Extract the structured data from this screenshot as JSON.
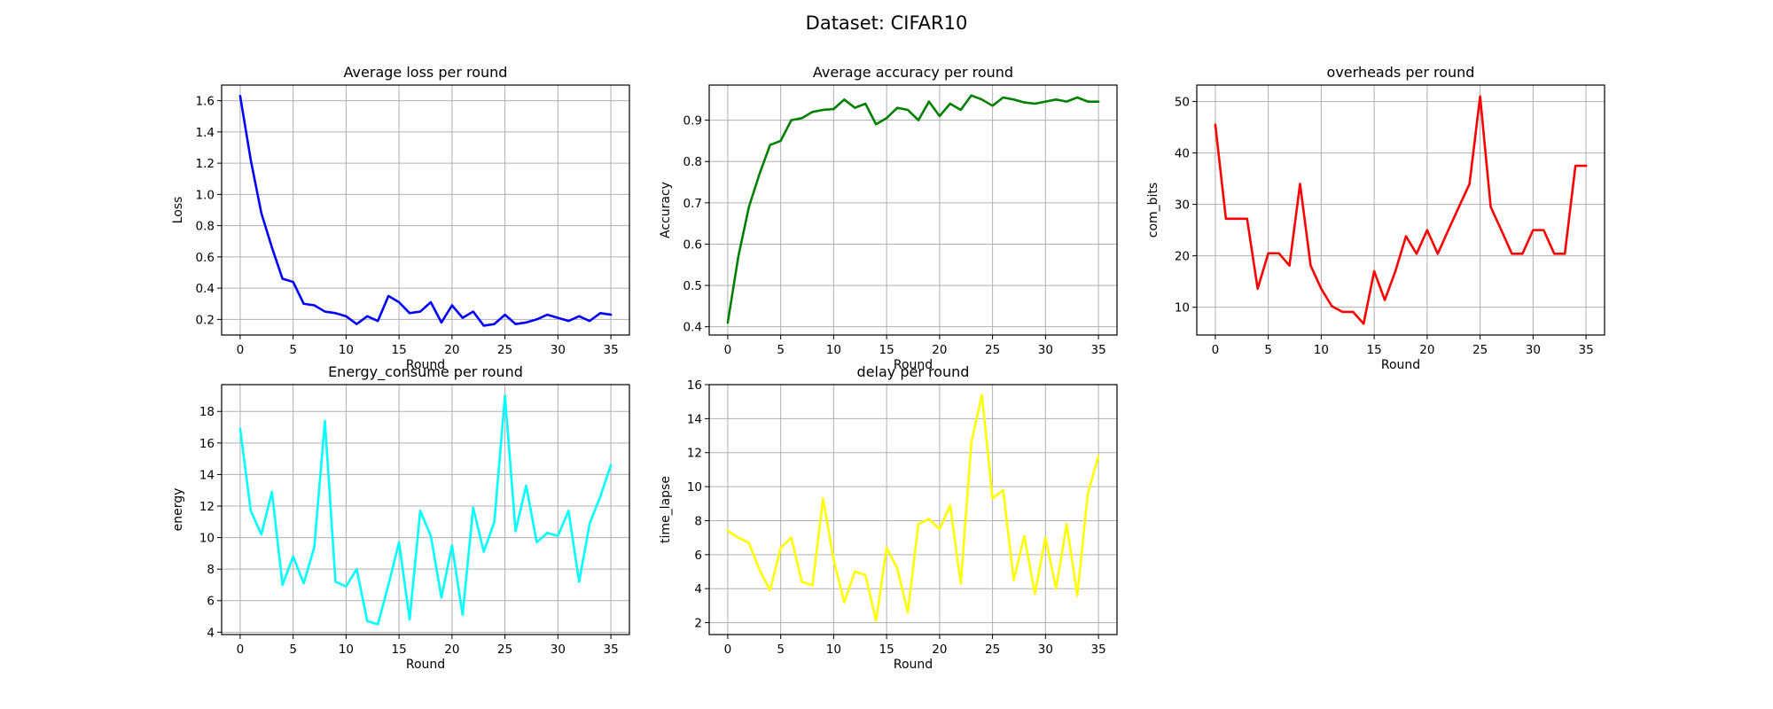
{
  "suptitle": "Dataset: CIFAR10",
  "chart_data": [
    {
      "type": "line",
      "title": "Average loss per round",
      "xlabel": "Round",
      "ylabel": "Loss",
      "color": "#0000ff",
      "grid": true,
      "xlim": [
        -1.75,
        36.75
      ],
      "ylim": [
        0.1,
        1.7
      ],
      "xticks": [
        0,
        5,
        10,
        15,
        20,
        25,
        30,
        35
      ],
      "yticks": [
        0.2,
        0.4,
        0.6,
        0.8,
        1.0,
        1.2,
        1.4,
        1.6
      ],
      "ytick_labels": [
        "0.2",
        "0.4",
        "0.6",
        "0.8",
        "1.0",
        "1.2",
        "1.4",
        "1.6"
      ],
      "x": [
        0,
        1,
        2,
        3,
        4,
        5,
        6,
        7,
        8,
        9,
        10,
        11,
        12,
        13,
        14,
        15,
        16,
        17,
        18,
        19,
        20,
        21,
        22,
        23,
        24,
        25,
        26,
        27,
        28,
        29,
        30,
        31,
        32,
        33,
        34,
        35
      ],
      "values": [
        1.63,
        1.22,
        0.88,
        0.66,
        0.46,
        0.44,
        0.3,
        0.29,
        0.25,
        0.24,
        0.22,
        0.17,
        0.22,
        0.19,
        0.35,
        0.31,
        0.24,
        0.25,
        0.31,
        0.18,
        0.29,
        0.21,
        0.25,
        0.16,
        0.17,
        0.23,
        0.17,
        0.18,
        0.2,
        0.23,
        0.21,
        0.19,
        0.22,
        0.19,
        0.24,
        0.23
      ]
    },
    {
      "type": "line",
      "title": "Average accuracy per round",
      "xlabel": "Round",
      "ylabel": "Accuracy",
      "color": "#008000",
      "grid": true,
      "xlim": [
        -1.75,
        36.75
      ],
      "ylim": [
        0.38,
        0.985
      ],
      "xticks": [
        0,
        5,
        10,
        15,
        20,
        25,
        30,
        35
      ],
      "yticks": [
        0.4,
        0.5,
        0.6,
        0.7,
        0.8,
        0.9
      ],
      "ytick_labels": [
        "0.4",
        "0.5",
        "0.6",
        "0.7",
        "0.8",
        "0.9"
      ],
      "x": [
        0,
        1,
        2,
        3,
        4,
        5,
        6,
        7,
        8,
        9,
        10,
        11,
        12,
        13,
        14,
        15,
        16,
        17,
        18,
        19,
        20,
        21,
        22,
        23,
        24,
        25,
        26,
        27,
        28,
        29,
        30,
        31,
        32,
        33,
        34,
        35
      ],
      "values": [
        0.41,
        0.57,
        0.69,
        0.77,
        0.84,
        0.85,
        0.9,
        0.905,
        0.92,
        0.925,
        0.927,
        0.95,
        0.93,
        0.94,
        0.89,
        0.905,
        0.93,
        0.925,
        0.9,
        0.945,
        0.91,
        0.94,
        0.925,
        0.96,
        0.95,
        0.935,
        0.955,
        0.95,
        0.943,
        0.94,
        0.945,
        0.95,
        0.945,
        0.955,
        0.945,
        0.945
      ]
    },
    {
      "type": "line",
      "title": "overheads per round",
      "xlabel": "Round",
      "ylabel": "com_bits",
      "color": "#ff0000",
      "grid": true,
      "xlim": [
        -1.75,
        36.75
      ],
      "ylim": [
        4.6,
        53.2
      ],
      "xticks": [
        0,
        5,
        10,
        15,
        20,
        25,
        30,
        35
      ],
      "yticks": [
        10,
        20,
        30,
        40,
        50
      ],
      "ytick_labels": [
        "10",
        "20",
        "30",
        "40",
        "50"
      ],
      "x": [
        0,
        1,
        2,
        3,
        4,
        5,
        6,
        7,
        8,
        9,
        10,
        11,
        12,
        13,
        14,
        15,
        16,
        17,
        18,
        19,
        20,
        21,
        22,
        23,
        24,
        25,
        26,
        27,
        28,
        29,
        30,
        31,
        32,
        33,
        34,
        35
      ],
      "values": [
        45.5,
        27.2,
        27.2,
        27.2,
        13.6,
        20.5,
        20.5,
        18.1,
        34.0,
        18.1,
        13.6,
        10.2,
        9.1,
        9.1,
        6.8,
        17.0,
        11.4,
        17.0,
        23.8,
        20.4,
        25.0,
        20.4,
        25.0,
        29.5,
        34.0,
        51.0,
        29.5,
        25.0,
        20.4,
        20.4,
        25.0,
        25.0,
        20.4,
        20.4,
        37.5,
        37.5
      ]
    },
    {
      "type": "line",
      "title": "Energy_consume per round",
      "xlabel": "Round",
      "ylabel": "energy",
      "color": "#00ffff",
      "grid": true,
      "xlim": [
        -1.75,
        36.75
      ],
      "ylim": [
        3.85,
        19.7
      ],
      "xticks": [
        0,
        5,
        10,
        15,
        20,
        25,
        30,
        35
      ],
      "yticks": [
        4,
        6,
        8,
        10,
        12,
        14,
        16,
        18
      ],
      "ytick_labels": [
        "4",
        "6",
        "8",
        "10",
        "12",
        "14",
        "16",
        "18"
      ],
      "x": [
        0,
        1,
        2,
        3,
        4,
        5,
        6,
        7,
        8,
        9,
        10,
        11,
        12,
        13,
        14,
        15,
        16,
        17,
        18,
        19,
        20,
        21,
        22,
        23,
        24,
        25,
        26,
        27,
        28,
        29,
        30,
        31,
        32,
        33,
        34,
        35
      ],
      "values": [
        16.9,
        11.7,
        10.2,
        12.9,
        7.0,
        8.8,
        7.1,
        9.4,
        17.4,
        7.2,
        6.9,
        8.0,
        4.7,
        4.5,
        7.0,
        9.7,
        4.8,
        11.7,
        10.1,
        6.2,
        9.5,
        5.1,
        11.9,
        9.1,
        11.0,
        19.0,
        10.4,
        13.3,
        9.7,
        10.3,
        10.1,
        11.7,
        7.2,
        10.9,
        12.6,
        14.6
      ]
    },
    {
      "type": "line",
      "title": "delay per round",
      "xlabel": "Round",
      "ylabel": "time_lapse",
      "color": "#ffff00",
      "grid": true,
      "xlim": [
        -1.75,
        36.75
      ],
      "ylim": [
        1.3,
        16.0
      ],
      "xticks": [
        0,
        5,
        10,
        15,
        20,
        25,
        30,
        35
      ],
      "yticks": [
        2,
        4,
        6,
        8,
        10,
        12,
        14,
        16
      ],
      "ytick_labels": [
        "2",
        "4",
        "6",
        "8",
        "10",
        "12",
        "14",
        "16"
      ],
      "x": [
        0,
        1,
        2,
        3,
        4,
        5,
        6,
        7,
        8,
        9,
        10,
        11,
        12,
        13,
        14,
        15,
        16,
        17,
        18,
        19,
        20,
        21,
        22,
        23,
        24,
        25,
        26,
        27,
        28,
        29,
        30,
        31,
        32,
        33,
        34,
        35
      ],
      "values": [
        7.4,
        7.0,
        6.7,
        5.1,
        3.9,
        6.4,
        7.0,
        4.4,
        4.2,
        9.3,
        5.7,
        3.2,
        5.0,
        4.8,
        2.1,
        6.4,
        5.2,
        2.6,
        7.8,
        8.1,
        7.5,
        8.9,
        4.3,
        12.6,
        15.4,
        9.3,
        9.8,
        4.5,
        7.1,
        3.7,
        7.0,
        4.0,
        7.8,
        3.6,
        9.6,
        11.8
      ]
    }
  ]
}
